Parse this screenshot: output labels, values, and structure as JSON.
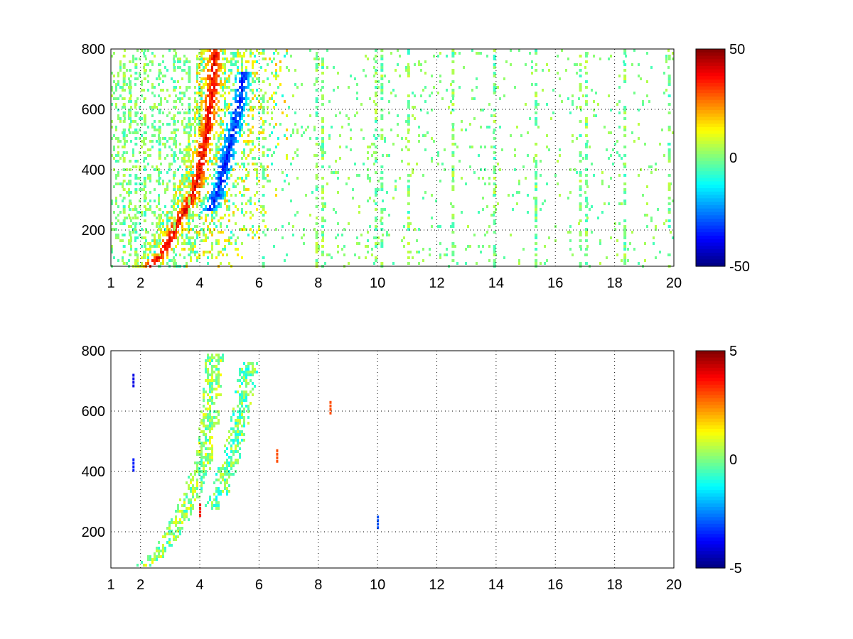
{
  "chart_data": [
    {
      "type": "heatmap",
      "title": "",
      "xlabel": "",
      "ylabel": "",
      "xlim": [
        1,
        20
      ],
      "ylim": [
        80,
        800
      ],
      "x_ticks": [
        "1",
        "2",
        "4",
        "6",
        "8",
        "10",
        "12",
        "14",
        "16",
        "18",
        "20"
      ],
      "y_ticks": [
        "200",
        "400",
        "600",
        "800"
      ],
      "grid": true,
      "colormap": "jet",
      "colorbar": {
        "min": -50,
        "max": 50,
        "ticks": [
          "50",
          "0",
          "-50"
        ]
      },
      "features": [
        {
          "label": "positive ridge",
          "value_approx": 40,
          "points": [
            [
              2.3,
              80
            ],
            [
              2.8,
              130
            ],
            [
              3.2,
              220
            ],
            [
              3.6,
              280
            ],
            [
              3.9,
              360
            ],
            [
              4.1,
              450
            ],
            [
              4.3,
              560
            ],
            [
              4.45,
              680
            ],
            [
              4.5,
              800
            ]
          ]
        },
        {
          "label": "negative ridge",
          "value_approx": -35,
          "points": [
            [
              4.3,
              260
            ],
            [
              4.6,
              320
            ],
            [
              4.8,
              400
            ],
            [
              5.0,
              480
            ],
            [
              5.2,
              560
            ],
            [
              5.4,
              650
            ],
            [
              5.5,
              720
            ]
          ]
        }
      ],
      "vertical_streak_x": [
        1.4,
        1.6,
        1.8,
        2.1,
        2.6,
        3.1,
        3.6,
        6.1,
        7.9,
        8.1,
        9.9,
        10.1,
        11.0,
        12.5,
        13.9,
        15.3,
        16.8,
        17.0,
        18.3,
        19.8
      ]
    },
    {
      "type": "heatmap",
      "title": "",
      "xlabel": "",
      "ylabel": "",
      "xlim": [
        1,
        20
      ],
      "ylim": [
        80,
        800
      ],
      "x_ticks": [
        "1",
        "2",
        "4",
        "6",
        "8",
        "10",
        "12",
        "14",
        "16",
        "18",
        "20"
      ],
      "y_ticks": [
        "200",
        "400",
        "600",
        "800"
      ],
      "grid": true,
      "colormap": "jet",
      "colorbar": {
        "min": -5,
        "max": 5,
        "ticks": [
          "5",
          "0",
          "-5"
        ]
      },
      "features": [
        {
          "label": "left band",
          "value_approx": 0.5,
          "points": [
            [
              2.0,
              85
            ],
            [
              2.6,
              120
            ],
            [
              3.1,
              200
            ],
            [
              3.5,
              270
            ],
            [
              3.8,
              340
            ],
            [
              4.1,
              430
            ],
            [
              4.3,
              540
            ],
            [
              4.45,
              680
            ],
            [
              4.5,
              790
            ]
          ]
        },
        {
          "label": "right band",
          "value_approx": -0.5,
          "points": [
            [
              4.4,
              270
            ],
            [
              4.7,
              330
            ],
            [
              4.9,
              400
            ],
            [
              5.1,
              470
            ],
            [
              5.3,
              550
            ],
            [
              5.5,
              640
            ],
            [
              5.6,
              720
            ],
            [
              5.7,
              760
            ]
          ]
        }
      ],
      "spots": [
        [
          1.75,
          700,
          -4
        ],
        [
          1.75,
          420,
          -3.5
        ],
        [
          8.4,
          610,
          3
        ],
        [
          10.0,
          230,
          -3
        ],
        [
          4.0,
          270,
          3.5
        ],
        [
          6.6,
          450,
          3
        ]
      ]
    }
  ]
}
